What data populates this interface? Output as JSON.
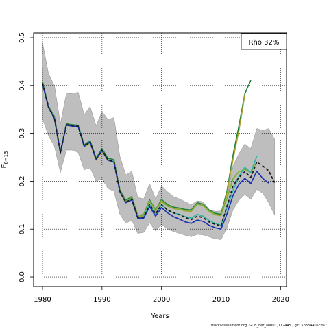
{
  "chart_data": {
    "type": "line",
    "title": "",
    "xlabel": "Years",
    "ylabel": "F",
    "ylabel_subscript": "6−13",
    "xlim": [
      1978.5,
      2021
    ],
    "ylim": [
      -0.02,
      0.51
    ],
    "xticks": [
      "1980",
      "1990",
      "2000",
      "2010",
      "2020"
    ],
    "yticks": [
      "0.0",
      "0.1",
      "0.2",
      "0.3",
      "0.4",
      "0.5"
    ],
    "grid": true,
    "legend": {
      "text": "Rho 32%",
      "placement": "top-right"
    },
    "colors": {
      "band": "#bebebe",
      "band_edge": "#8c8c8c",
      "final": "#1a1a1a",
      "peel1": "#1a2fb0",
      "peel2": "#29b5a8",
      "peel3": "#7cae3a",
      "peel4": "#a7a230",
      "peel5": "#1f7f38"
    },
    "band": {
      "x": [
        1980,
        1981,
        1982,
        1983,
        1984,
        1985,
        1986,
        1987,
        1988,
        1989,
        1990,
        1991,
        1992,
        1993,
        1994,
        1995,
        1996,
        1997,
        1998,
        1999,
        2000,
        2001,
        2002,
        2003,
        2004,
        2005,
        2006,
        2007,
        2008,
        2009,
        2010,
        2011,
        2012,
        2013,
        2014,
        2015,
        2016,
        2017,
        2018,
        2019
      ],
      "upper": [
        0.49,
        0.425,
        0.4,
        0.32,
        0.383,
        0.384,
        0.386,
        0.339,
        0.356,
        0.316,
        0.346,
        0.329,
        0.333,
        0.252,
        0.213,
        0.221,
        0.166,
        0.163,
        0.195,
        0.163,
        0.19,
        0.178,
        0.168,
        0.163,
        0.157,
        0.151,
        0.159,
        0.157,
        0.141,
        0.137,
        0.138,
        0.167,
        0.232,
        0.257,
        0.278,
        0.268,
        0.31,
        0.306,
        0.31,
        0.288
      ],
      "lower": [
        0.331,
        0.295,
        0.273,
        0.218,
        0.265,
        0.265,
        0.26,
        0.224,
        0.228,
        0.2,
        0.205,
        0.185,
        0.179,
        0.131,
        0.112,
        0.119,
        0.091,
        0.093,
        0.113,
        0.096,
        0.11,
        0.1,
        0.095,
        0.091,
        0.087,
        0.084,
        0.089,
        0.088,
        0.084,
        0.08,
        0.078,
        0.103,
        0.14,
        0.16,
        0.172,
        0.162,
        0.183,
        0.175,
        0.155,
        0.13
      ]
    },
    "series": [
      {
        "key": "peel5",
        "x": [
          1980,
          1981,
          1982,
          1983,
          1984,
          1985,
          1986,
          1987,
          1988,
          1989,
          1990,
          1991,
          1992,
          1993,
          1994,
          1995,
          1996,
          1997,
          1998,
          1999,
          2000,
          2001,
          2002,
          2003,
          2004,
          2005,
          2006,
          2007,
          2008,
          2009,
          2010,
          2011,
          2012,
          2013,
          2014,
          2015
        ],
        "y": [
          0.408,
          0.357,
          0.335,
          0.262,
          0.32,
          0.318,
          0.317,
          0.276,
          0.285,
          0.248,
          0.268,
          0.248,
          0.245,
          0.182,
          0.16,
          0.168,
          0.129,
          0.13,
          0.161,
          0.14,
          0.162,
          0.151,
          0.146,
          0.144,
          0.141,
          0.14,
          0.155,
          0.152,
          0.14,
          0.133,
          0.131,
          0.18,
          0.254,
          0.315,
          0.383,
          0.411
        ]
      },
      {
        "key": "peel4",
        "x": [
          1980,
          1981,
          1982,
          1983,
          1984,
          1985,
          1986,
          1987,
          1988,
          1989,
          1990,
          1991,
          1992,
          1993,
          1994,
          1995,
          1996,
          1997,
          1998,
          1999,
          2000,
          2001,
          2002,
          2003,
          2004,
          2005,
          2006,
          2007,
          2008,
          2009,
          2010,
          2011,
          2012,
          2013,
          2014
        ],
        "y": [
          0.404,
          0.355,
          0.331,
          0.259,
          0.317,
          0.315,
          0.314,
          0.272,
          0.28,
          0.244,
          0.262,
          0.243,
          0.24,
          0.178,
          0.157,
          0.165,
          0.127,
          0.128,
          0.158,
          0.138,
          0.158,
          0.148,
          0.143,
          0.141,
          0.138,
          0.137,
          0.152,
          0.149,
          0.137,
          0.13,
          0.128,
          0.175,
          0.245,
          0.305,
          0.38
        ]
      },
      {
        "key": "peel3",
        "x": [
          1980,
          1981,
          1982,
          1983,
          1984,
          1985,
          1986,
          1987,
          1988,
          1989,
          1990,
          1991,
          1992,
          1993,
          1994,
          1995,
          1996,
          1997,
          1998,
          1999,
          2000,
          2001,
          2002,
          2003,
          2004,
          2005,
          2006,
          2007,
          2008,
          2009,
          2010,
          2011,
          2012,
          2013,
          2014,
          2015,
          2016
        ],
        "y": [
          0.405,
          0.356,
          0.333,
          0.26,
          0.318,
          0.316,
          0.315,
          0.274,
          0.282,
          0.246,
          0.265,
          0.245,
          0.242,
          0.18,
          0.158,
          0.166,
          0.128,
          0.129,
          0.159,
          0.139,
          0.16,
          0.149,
          0.144,
          0.142,
          0.139,
          0.138,
          0.153,
          0.15,
          0.138,
          0.131,
          0.129,
          0.165,
          0.205,
          0.22,
          0.225,
          0.218,
          0.24
        ]
      },
      {
        "key": "peel2",
        "x": [
          1980,
          1981,
          1982,
          1983,
          1984,
          1985,
          1986,
          1987,
          1988,
          1989,
          1990,
          1991,
          1992,
          1993,
          1994,
          1995,
          1996,
          1997,
          1998,
          1999,
          2000,
          2001,
          2002,
          2003,
          2004,
          2005,
          2006,
          2007,
          2008,
          2009,
          2010,
          2011,
          2012,
          2013,
          2014,
          2015,
          2016
        ],
        "y": [
          0.405,
          0.355,
          0.332,
          0.26,
          0.318,
          0.316,
          0.315,
          0.274,
          0.283,
          0.247,
          0.265,
          0.245,
          0.241,
          0.179,
          0.156,
          0.163,
          0.125,
          0.125,
          0.151,
          0.131,
          0.151,
          0.14,
          0.134,
          0.131,
          0.126,
          0.123,
          0.131,
          0.127,
          0.118,
          0.112,
          0.108,
          0.145,
          0.18,
          0.21,
          0.229,
          0.218,
          0.252
        ]
      },
      {
        "key": "peel1",
        "x": [
          1980,
          1981,
          1982,
          1983,
          1984,
          1985,
          1986,
          1987,
          1988,
          1989,
          1990,
          1991,
          1992,
          1993,
          1994,
          1995,
          1996,
          1997,
          1998,
          1999,
          2000,
          2001,
          2002,
          2003,
          2004,
          2005,
          2006,
          2007,
          2008,
          2009,
          2010,
          2011,
          2012,
          2013,
          2014,
          2015,
          2016,
          2017,
          2018
        ],
        "y": [
          0.404,
          0.354,
          0.331,
          0.259,
          0.317,
          0.315,
          0.314,
          0.273,
          0.282,
          0.246,
          0.264,
          0.244,
          0.24,
          0.178,
          0.155,
          0.161,
          0.123,
          0.123,
          0.147,
          0.127,
          0.145,
          0.134,
          0.126,
          0.121,
          0.115,
          0.112,
          0.119,
          0.116,
          0.108,
          0.103,
          0.1,
          0.132,
          0.17,
          0.193,
          0.206,
          0.195,
          0.221,
          0.206,
          0.196
        ]
      },
      {
        "key": "final",
        "dashed": true,
        "x": [
          1980,
          1981,
          1982,
          1983,
          1984,
          1985,
          1986,
          1987,
          1988,
          1989,
          1990,
          1991,
          1992,
          1993,
          1994,
          1995,
          1996,
          1997,
          1998,
          1999,
          2000,
          2001,
          2002,
          2003,
          2004,
          2005,
          2006,
          2007,
          2008,
          2009,
          2010,
          2011,
          2012,
          2013,
          2014,
          2015,
          2016,
          2017,
          2018,
          2019
        ],
        "y": [
          0.405,
          0.355,
          0.332,
          0.26,
          0.318,
          0.316,
          0.315,
          0.274,
          0.282,
          0.246,
          0.265,
          0.245,
          0.241,
          0.179,
          0.156,
          0.163,
          0.125,
          0.125,
          0.152,
          0.132,
          0.151,
          0.14,
          0.134,
          0.13,
          0.124,
          0.12,
          0.127,
          0.124,
          0.115,
          0.11,
          0.107,
          0.148,
          0.19,
          0.208,
          0.22,
          0.208,
          0.24,
          0.232,
          0.222,
          0.197
        ]
      }
    ]
  },
  "footer": {
    "text": "stockassessment.org, GOB_her_an001, r12445 , git: 5b334405cda7"
  }
}
